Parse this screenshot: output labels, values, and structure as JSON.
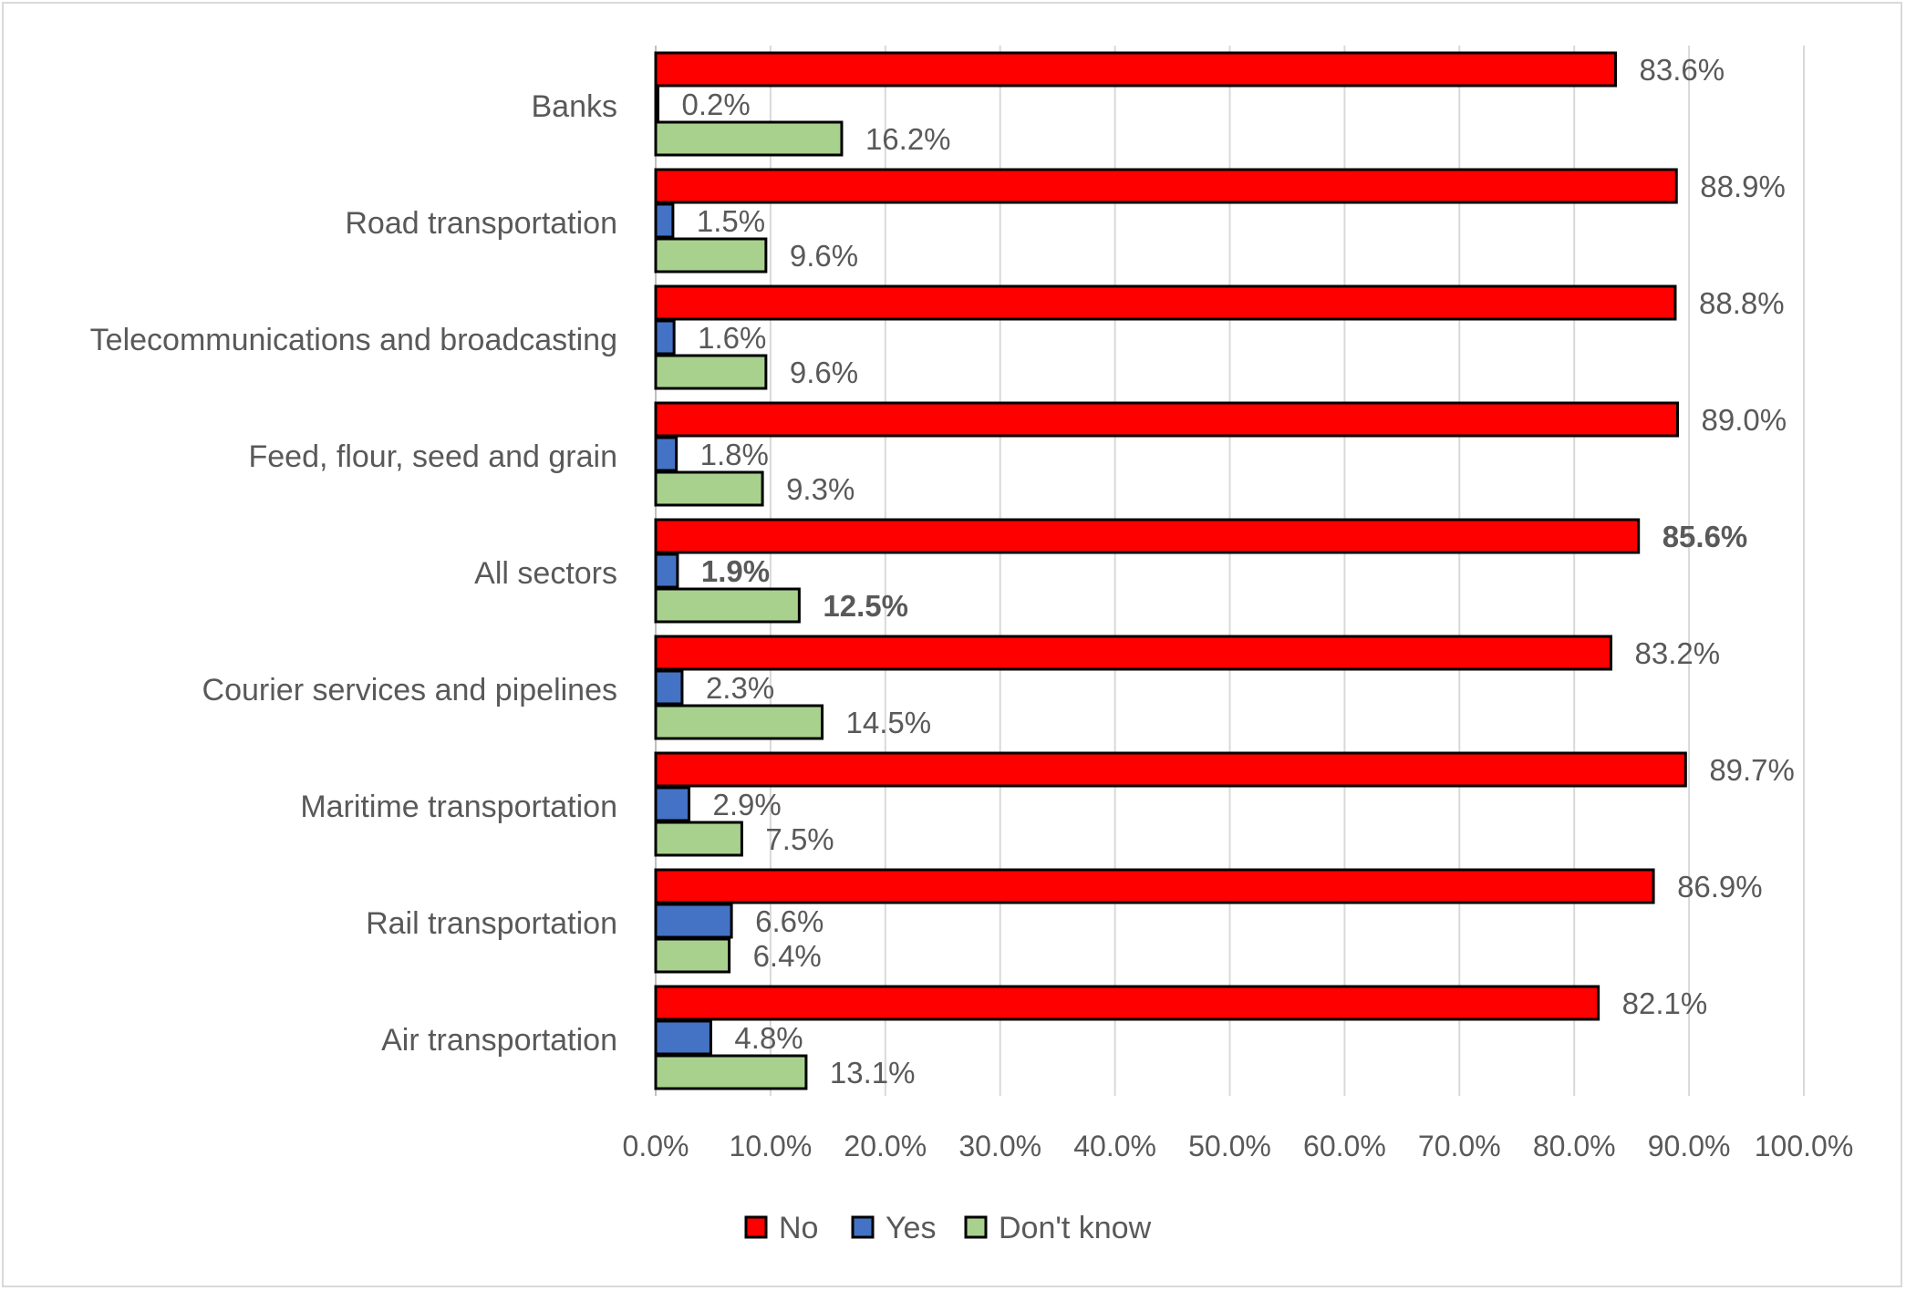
{
  "chart_data": {
    "type": "bar",
    "orientation": "horizontal",
    "title": "",
    "xlabel": "",
    "ylabel": "",
    "xlim": [
      0,
      100
    ],
    "grid": true,
    "legend_position": "bottom",
    "categories": [
      "Banks",
      "Road transportation",
      "Telecommunications and broadcasting",
      "Feed, flour, seed and grain",
      "All sectors",
      "Courier services and pipelines",
      "Maritime transportation",
      "Rail transportation",
      "Air transportation"
    ],
    "highlight_category": "All sectors",
    "series": [
      {
        "name": "No",
        "color": "#ff0000",
        "values": [
          83.6,
          88.9,
          88.8,
          89.0,
          85.6,
          83.2,
          89.7,
          86.9,
          82.1
        ],
        "labels": [
          "83.6%",
          "88.9%",
          "88.8%",
          "89.0%",
          "85.6%",
          "83.2%",
          "89.7%",
          "86.9%",
          "82.1%"
        ]
      },
      {
        "name": "Yes",
        "color": "#4472c4",
        "values": [
          0.2,
          1.5,
          1.6,
          1.8,
          1.9,
          2.3,
          2.9,
          6.6,
          4.8
        ],
        "labels": [
          "0.2%",
          "1.5%",
          "1.6%",
          "1.8%",
          "1.9%",
          "2.3%",
          "2.9%",
          "6.6%",
          "4.8%"
        ]
      },
      {
        "name": "Don't know",
        "color": "#a9d18e",
        "values": [
          16.2,
          9.6,
          9.6,
          9.3,
          12.5,
          14.5,
          7.5,
          6.4,
          13.1
        ],
        "labels": [
          "16.2%",
          "9.6%",
          "9.6%",
          "9.3%",
          "12.5%",
          "14.5%",
          "7.5%",
          "6.4%",
          "13.1%"
        ]
      }
    ],
    "x_ticks": [
      "0.0%",
      "10.0%",
      "20.0%",
      "30.0%",
      "40.0%",
      "50.0%",
      "60.0%",
      "70.0%",
      "80.0%",
      "90.0%",
      "100.0%"
    ]
  }
}
